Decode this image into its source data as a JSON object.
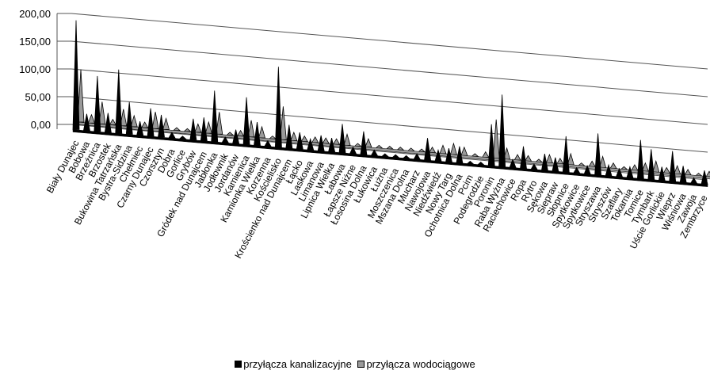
{
  "chart_data": {
    "type": "area",
    "title": "",
    "xlabel": "",
    "ylabel": "",
    "ylim": [
      0,
      200
    ],
    "y_ticks": [
      "0,00",
      "50,00",
      "100,00",
      "150,00",
      "200,00"
    ],
    "grid": true,
    "legend_position": "bottom",
    "categories": [
      "Biały Dunajec",
      "Bobowa",
      "Brzeźnica",
      "Brzostek",
      "Bukowina Tatrzańska",
      "Bystra-Sidzina",
      "Chełmiec",
      "Czarny Dunajec",
      "Czorsztyn",
      "Dobra",
      "Gorlice",
      "Grybów",
      "Gródek nad Dunajcem",
      "Jabłonka",
      "Jodłownik",
      "Jordanów",
      "Kamienica",
      "Kamionka Wielka",
      "Korzenna",
      "Kościelisko",
      "Krościenko nad Dunajcem",
      "Łącko",
      "Laskowa",
      "Limanowa",
      "Lipnica Wielka",
      "Łabowa",
      "Łapsze Niżne",
      "Łososina Dolna",
      "Łukowica",
      "Łużna",
      "Moszczenica",
      "Mszana Dolna",
      "Mucharz",
      "Nawojowa",
      "Niedźwiedź",
      "Nowy Targ",
      "Ochotnica Dolna",
      "Pcim",
      "Podegrodzie",
      "Poronin",
      "Raba Wyżna",
      "Raciechowice",
      "Ropa",
      "Rytro",
      "Sękowa",
      "Siepraw",
      "Słopnice",
      "Spytkowice",
      "Spytkowice",
      "Stryszawa",
      "Stryszów",
      "Szaflary",
      "Tokarnia",
      "Tomice",
      "Tymbark",
      "Uście Gorlickie",
      "Wieprz",
      "Wiśniowa",
      "Zawoja",
      "Zembrzyce"
    ],
    "series": [
      {
        "name": "przyłącza kanalizacyjne",
        "color": "#000000",
        "values": [
          197,
          30,
          100,
          35,
          115,
          58,
          25,
          50,
          40,
          10,
          5,
          38,
          42,
          92,
          10,
          25,
          85,
          42,
          10,
          145,
          42,
          30,
          20,
          28,
          25,
          52,
          12,
          42,
          10,
          5,
          5,
          5,
          10,
          40,
          20,
          25,
          30,
          5,
          5,
          75,
          130,
          15,
          40,
          10,
          30,
          25,
          65,
          10,
          15,
          75,
          20,
          15,
          20,
          70,
          55,
          25,
          55,
          30,
          10,
          25
        ]
      },
      {
        "name": "przyłącza wodociągowe",
        "color": "#9a9a9a",
        "values": [
          95,
          15,
          40,
          10,
          30,
          20,
          10,
          30,
          20,
          5,
          5,
          15,
          20,
          40,
          5,
          10,
          30,
          20,
          5,
          60,
          15,
          10,
          10,
          10,
          10,
          20,
          5,
          15,
          5,
          5,
          5,
          5,
          5,
          10,
          15,
          20,
          15,
          5,
          10,
          70,
          20,
          10,
          10,
          5,
          15,
          10,
          20,
          5,
          10,
          20,
          10,
          5,
          10,
          15,
          20,
          10,
          15,
          10,
          5,
          10
        ]
      }
    ]
  },
  "legend": {
    "items": [
      "przyłącza kanalizacyjne",
      "przyłącza wodociągowe"
    ]
  }
}
